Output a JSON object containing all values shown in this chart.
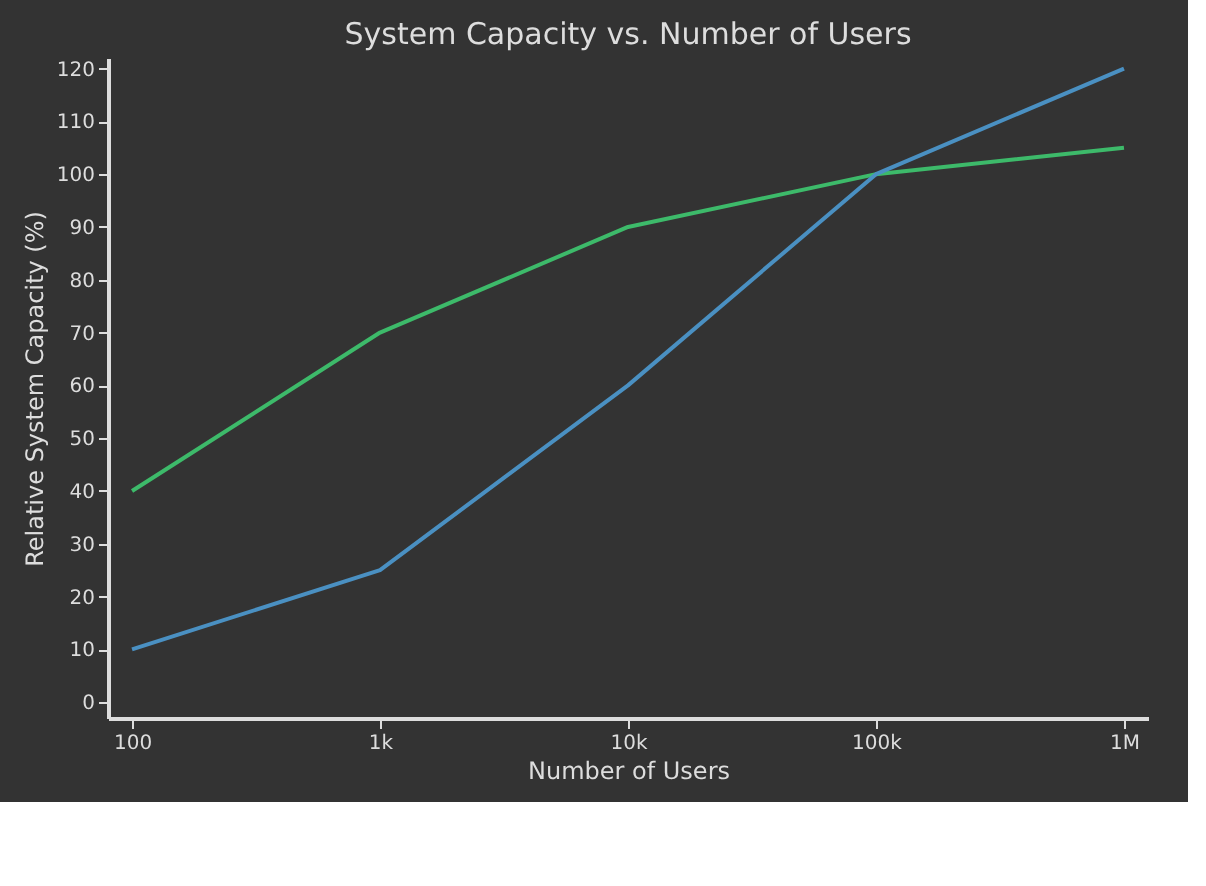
{
  "chart_data": {
    "type": "line",
    "title": "System Capacity vs. Number of Users",
    "xlabel": "Number of Users",
    "ylabel": "Relative System Capacity (%)",
    "x": [
      100,
      1000,
      10000,
      100000,
      1000000
    ],
    "series": [
      {
        "color": "#3dba6a",
        "values": [
          40,
          70,
          90,
          100,
          105
        ]
      },
      {
        "color": "#4a90c2",
        "values": [
          10,
          25,
          60,
          100,
          120
        ]
      }
    ],
    "log": "x",
    "xlim": [
      80,
      1250000
    ],
    "xticks": [
      {
        "value": 100,
        "label": "100"
      },
      {
        "value": 1000,
        "label": "1k"
      },
      {
        "value": 10000,
        "label": "10k"
      },
      {
        "value": 100000,
        "label": "100k"
      },
      {
        "value": 1000000,
        "label": "1M"
      }
    ],
    "ylim": [
      -3,
      122
    ],
    "yticks": [
      0,
      10,
      20,
      30,
      40,
      50,
      60,
      70,
      80,
      90,
      100,
      110,
      120
    ],
    "grid": false,
    "marker": "none",
    "line_style": "solid"
  }
}
